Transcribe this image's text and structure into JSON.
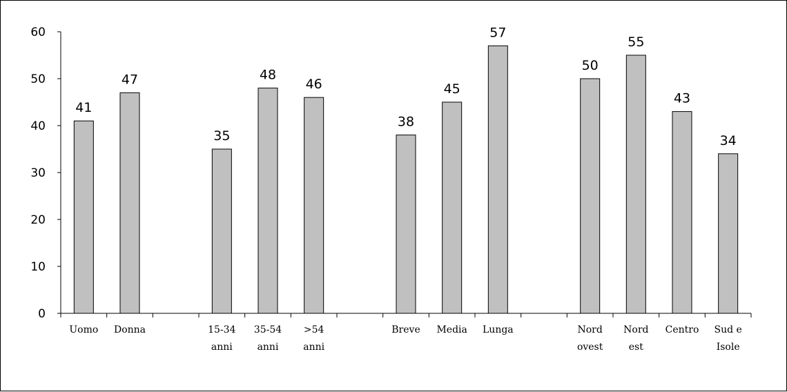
{
  "chart_data": {
    "type": "bar",
    "title": "",
    "xlabel": "",
    "ylabel": "",
    "ylim": [
      0,
      60
    ],
    "yticks": [
      0,
      10,
      20,
      30,
      40,
      50,
      60
    ],
    "grid": false,
    "legend": "none",
    "bar_color": "#c0c0c0",
    "categories": [
      [
        "Uomo"
      ],
      [
        "Donna"
      ],
      null,
      [
        "15-34",
        "anni"
      ],
      [
        "35-54",
        "anni"
      ],
      [
        ">54",
        "anni"
      ],
      null,
      [
        "Breve"
      ],
      [
        "Media"
      ],
      [
        "Lunga"
      ],
      null,
      [
        "Nord",
        "ovest"
      ],
      [
        "Nord",
        "est"
      ],
      [
        "Centro"
      ],
      [
        "Sud e",
        "Isole"
      ]
    ],
    "values": [
      41,
      47,
      null,
      35,
      48,
      46,
      null,
      38,
      45,
      57,
      null,
      50,
      55,
      43,
      34
    ]
  }
}
